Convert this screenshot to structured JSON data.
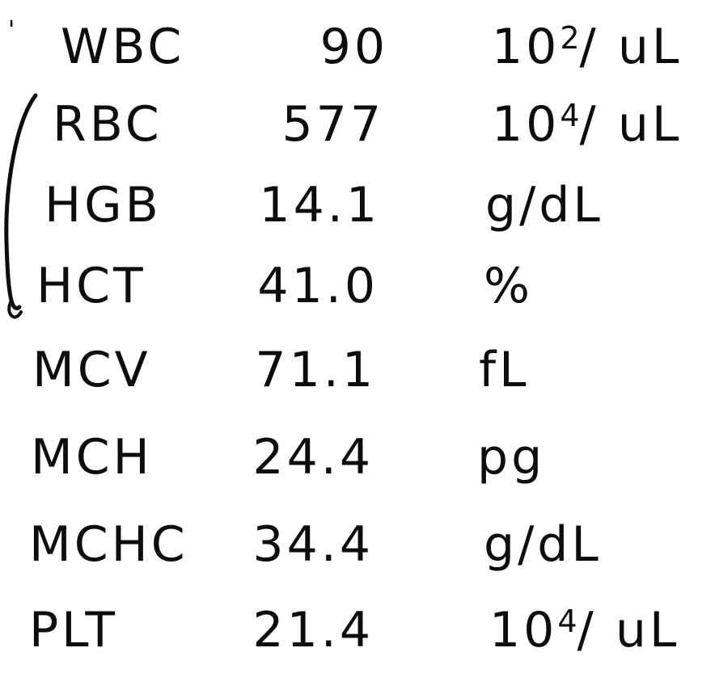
{
  "lab_results": {
    "rows": [
      {
        "name": "WBC",
        "value": "90",
        "unit_base": "10",
        "unit_exp": "2",
        "unit_tail": "/ uL"
      },
      {
        "name": "RBC",
        "value": "577",
        "unit_base": "10",
        "unit_exp": "4",
        "unit_tail": "/ uL"
      },
      {
        "name": "HGB",
        "value": "14.1",
        "unit_base": "g/dL",
        "unit_exp": "",
        "unit_tail": ""
      },
      {
        "name": "HCT",
        "value": "41.0",
        "unit_base": "%",
        "unit_exp": "",
        "unit_tail": ""
      },
      {
        "name": "MCV",
        "value": "71.1",
        "unit_base": "fL",
        "unit_exp": "",
        "unit_tail": ""
      },
      {
        "name": "MCH",
        "value": "24.4",
        "unit_base": "pg",
        "unit_exp": "",
        "unit_tail": ""
      },
      {
        "name": "MCHC",
        "value": "34.4",
        "unit_base": "g/dL",
        "unit_exp": "",
        "unit_tail": ""
      },
      {
        "name": "PLT",
        "value": "21.4",
        "unit_base": "10",
        "unit_exp": "4",
        "unit_tail": "/ uL"
      }
    ]
  },
  "annotation": {
    "tick_mark": "'",
    "ink_color": "#0d0d0d"
  }
}
